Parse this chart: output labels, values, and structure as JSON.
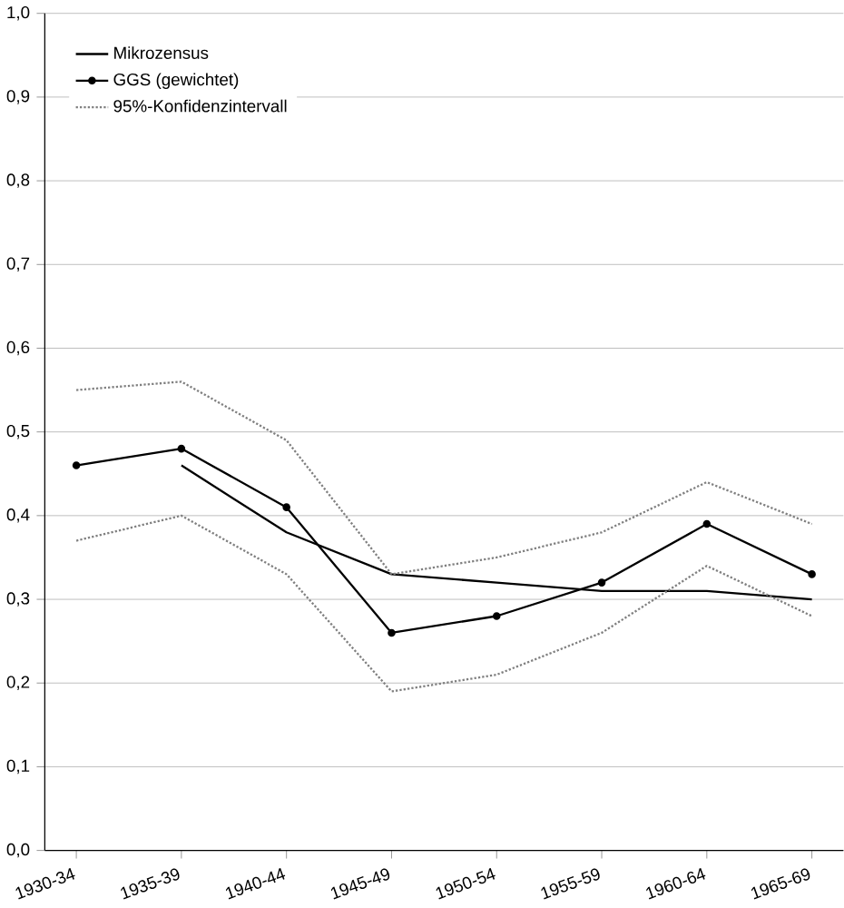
{
  "chart_data": {
    "type": "line",
    "categories": [
      "1930-34",
      "1935-39",
      "1940-44",
      "1945-49",
      "1950-54",
      "1955-59",
      "1960-64",
      "1965-69"
    ],
    "series": [
      {
        "name": "Mikrozensus",
        "color": "#000000",
        "marker": "none",
        "line_style": "solid",
        "values": [
          null,
          0.46,
          0.38,
          0.33,
          0.32,
          0.31,
          0.31,
          0.3
        ]
      },
      {
        "name": "GGS (gewichtet)",
        "color": "#000000",
        "marker": "circle",
        "line_style": "solid",
        "values": [
          0.46,
          0.48,
          0.41,
          0.26,
          0.28,
          0.32,
          0.39,
          0.33
        ]
      },
      {
        "name": "95%-Konfidenzintervall",
        "color": "#808080",
        "marker": "none",
        "line_style": "dotted",
        "values": [
          0.55,
          0.56,
          0.49,
          0.33,
          0.35,
          0.38,
          0.44,
          0.39
        ]
      },
      {
        "color": "#808080",
        "marker": "none",
        "line_style": "dotted",
        "values": [
          0.37,
          0.4,
          0.33,
          0.19,
          0.21,
          0.26,
          0.34,
          0.28
        ]
      }
    ],
    "ylim": [
      0,
      1
    ],
    "yticks": [
      {
        "value": 0,
        "label": "0,0"
      },
      {
        "value": 0.1,
        "label": "0,1"
      },
      {
        "value": 0.2,
        "label": "0,2"
      },
      {
        "value": 0.3,
        "label": "0,3"
      },
      {
        "value": 0.4,
        "label": "0,4"
      },
      {
        "value": 0.5,
        "label": "0,5"
      },
      {
        "value": 0.6,
        "label": "0,6"
      },
      {
        "value": 0.7,
        "label": "0,7"
      },
      {
        "value": 0.8,
        "label": "0,8"
      },
      {
        "value": 0.9,
        "label": "0,9"
      },
      {
        "value": 1,
        "label": "1,0"
      }
    ],
    "grid": "y",
    "legend": "top left"
  }
}
